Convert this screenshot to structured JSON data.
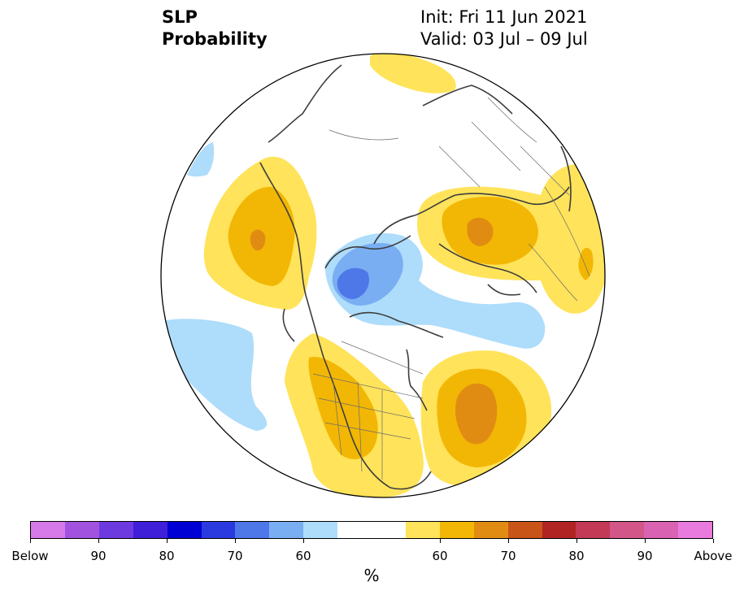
{
  "header": {
    "title_line1": "SLP",
    "title_line2": "Probability",
    "init": "Init: Fri 11 Jun 2021",
    "valid": "Valid: 03 Jul – 09 Jul"
  },
  "legend": {
    "units": "%",
    "colors": [
      "#d57ae8",
      "#a153e0",
      "#6d3ae0",
      "#3f1fd8",
      "#0000d4",
      "#2b3adf",
      "#4e77e8",
      "#79aef2",
      "#aedcfb",
      "#ffffff",
      "#ffe35a",
      "#f2b705",
      "#e08c12",
      "#c85418",
      "#b02424",
      "#c33a56",
      "#d25688",
      "#da62b2",
      "#e97ade"
    ],
    "tick_labels": [
      "Below",
      "90",
      "80",
      "70",
      "60",
      "60",
      "70",
      "80",
      "90",
      "Above"
    ]
  },
  "map": {
    "projection": "north-polar-stereographic",
    "features": [
      "yellow-high-probability-anomaly",
      "blue-low-probability-anomaly",
      "coastlines",
      "country-borders"
    ]
  }
}
